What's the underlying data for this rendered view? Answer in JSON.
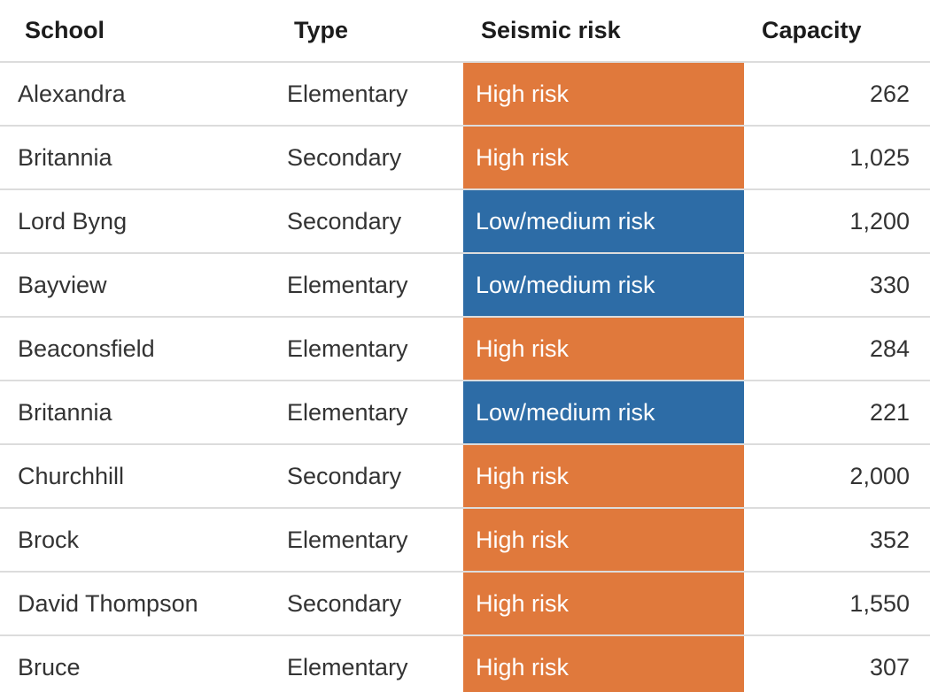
{
  "table": {
    "columns": [
      {
        "key": "school",
        "label": "School"
      },
      {
        "key": "type",
        "label": "Type"
      },
      {
        "key": "risk",
        "label": "Seismic risk"
      },
      {
        "key": "capacity",
        "label": "Capacity"
      }
    ],
    "rows": [
      {
        "school": "Alexandra",
        "type": "Elementary",
        "risk": "High risk",
        "risk_level": "high",
        "capacity": "262"
      },
      {
        "school": "Britannia",
        "type": "Secondary",
        "risk": "High risk",
        "risk_level": "high",
        "capacity": "1,025"
      },
      {
        "school": "Lord Byng",
        "type": "Secondary",
        "risk": "Low/medium risk",
        "risk_level": "low",
        "capacity": "1,200"
      },
      {
        "school": "Bayview",
        "type": "Elementary",
        "risk": "Low/medium risk",
        "risk_level": "low",
        "capacity": "330"
      },
      {
        "school": "Beaconsfield",
        "type": "Elementary",
        "risk": "High risk",
        "risk_level": "high",
        "capacity": "284"
      },
      {
        "school": "Britannia",
        "type": "Elementary",
        "risk": "Low/medium risk",
        "risk_level": "low",
        "capacity": "221"
      },
      {
        "school": "Churchhill",
        "type": "Secondary",
        "risk": "High risk",
        "risk_level": "high",
        "capacity": "2,000"
      },
      {
        "school": "Brock",
        "type": "Elementary",
        "risk": "High risk",
        "risk_level": "high",
        "capacity": "352"
      },
      {
        "school": "David Thompson",
        "type": "Secondary",
        "risk": "High risk",
        "risk_level": "high",
        "capacity": "1,550"
      },
      {
        "school": "Bruce",
        "type": "Elementary",
        "risk": "High risk",
        "risk_level": "high",
        "capacity": "307"
      }
    ],
    "colors": {
      "high_risk_bg": "#e0793c",
      "low_medium_risk_bg": "#2d6ca6",
      "risk_text": "#ffffff",
      "header_text": "#1c1c1c",
      "body_text": "#333333",
      "divider": "#dcdcdc"
    }
  },
  "chart_data": {
    "type": "table",
    "columns": [
      "School",
      "Type",
      "Seismic risk",
      "Capacity"
    ],
    "rows": [
      [
        "Alexandra",
        "Elementary",
        "High risk",
        262
      ],
      [
        "Britannia",
        "Secondary",
        "High risk",
        1025
      ],
      [
        "Lord Byng",
        "Secondary",
        "Low/medium risk",
        1200
      ],
      [
        "Bayview",
        "Elementary",
        "Low/medium risk",
        330
      ],
      [
        "Beaconsfield",
        "Elementary",
        "High risk",
        284
      ],
      [
        "Britannia",
        "Elementary",
        "Low/medium risk",
        221
      ],
      [
        "Churchhill",
        "Secondary",
        "High risk",
        2000
      ],
      [
        "Brock",
        "Elementary",
        "High risk",
        352
      ],
      [
        "David Thompson",
        "Secondary",
        "High risk",
        1550
      ],
      [
        "Bruce",
        "Elementary",
        "High risk",
        307
      ]
    ],
    "cell_color_legend": {
      "High risk": "#e0793c",
      "Low/medium risk": "#2d6ca6"
    },
    "layout_hints": {
      "risk_cells_filled": true,
      "capacity_align": "right",
      "grid": "horizontal dividers only"
    }
  }
}
